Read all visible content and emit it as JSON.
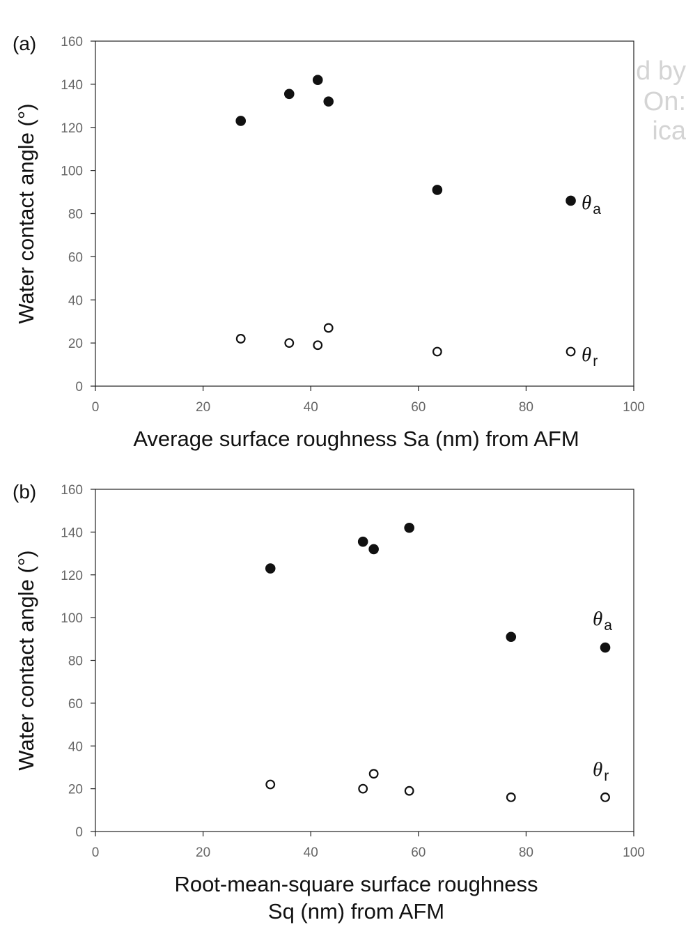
{
  "watermark": [
    "d by",
    "On:",
    "ica"
  ],
  "chart_data": [
    {
      "type": "scatter",
      "panel_label": "(a)",
      "xlabel": [
        "Average surface roughness Sa (nm) from AFM"
      ],
      "ylabel": "Water contact angle (°)",
      "xlim": [
        0,
        100
      ],
      "ylim": [
        0,
        160
      ],
      "xticks": [
        0,
        20,
        40,
        60,
        80,
        100
      ],
      "yticks": [
        0,
        20,
        40,
        60,
        80,
        100,
        120,
        140,
        160
      ],
      "grid": false,
      "series": [
        {
          "symbol": "θ",
          "subscript": "a",
          "marker": "filled",
          "x": [
            27,
            36,
            41.3,
            43.3,
            63.5,
            88.3
          ],
          "y": [
            123,
            135.5,
            142,
            132,
            91,
            86
          ]
        },
        {
          "symbol": "θ",
          "subscript": "r",
          "marker": "open",
          "x": [
            27,
            36,
            41.3,
            43.3,
            63.5,
            88.3
          ],
          "y": [
            22,
            20,
            19,
            27,
            16,
            16
          ]
        }
      ]
    },
    {
      "type": "scatter",
      "panel_label": "(b)",
      "xlabel": [
        "Root-mean-square surface roughness",
        "Sq (nm) from AFM"
      ],
      "ylabel": "Water contact angle (°)",
      "xlim": [
        0,
        100
      ],
      "ylim": [
        0,
        160
      ],
      "xticks": [
        0,
        20,
        40,
        60,
        80,
        100
      ],
      "yticks": [
        0,
        20,
        40,
        60,
        80,
        100,
        120,
        140,
        160
      ],
      "grid": false,
      "series": [
        {
          "symbol": "θ",
          "subscript": "a",
          "marker": "filled",
          "x": [
            32.5,
            49.7,
            51.7,
            58.3,
            77.2,
            94.7
          ],
          "y": [
            123,
            135.5,
            132,
            142,
            91,
            86
          ]
        },
        {
          "symbol": "θ",
          "subscript": "r",
          "marker": "open",
          "x": [
            32.5,
            49.7,
            51.7,
            58.3,
            77.2,
            94.7
          ],
          "y": [
            22,
            20,
            27,
            19,
            16,
            16
          ]
        }
      ]
    }
  ]
}
